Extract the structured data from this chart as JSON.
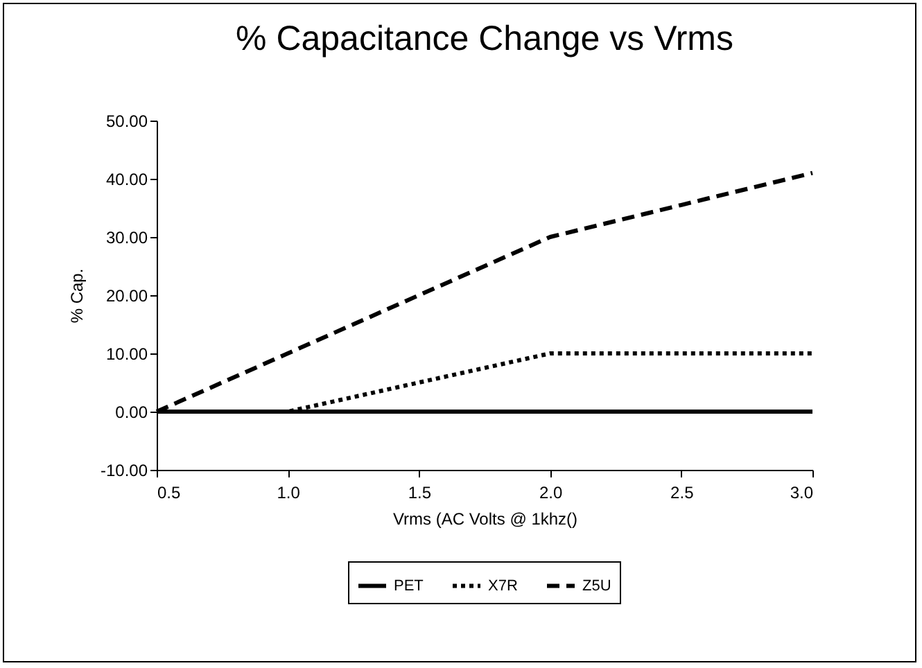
{
  "chart_data": {
    "type": "line",
    "title": "% Capacitance Change vs Vrms",
    "xlabel": "Vrms (AC Volts @ 1khz()",
    "ylabel": "% Cap.",
    "x": [
      0.5,
      1.0,
      1.5,
      2.0,
      2.5,
      3.0
    ],
    "series": [
      {
        "name": "PET",
        "color": "#000000",
        "line_style": "solid",
        "values": [
          0,
          0,
          0,
          0,
          0,
          0
        ]
      },
      {
        "name": "X7R",
        "color": "#000000",
        "line_style": "dotted",
        "values": [
          0,
          0,
          5,
          10,
          10,
          10
        ]
      },
      {
        "name": "Z5U",
        "color": "#000000",
        "line_style": "dashed",
        "values": [
          0,
          10,
          20,
          30,
          35.5,
          41
        ]
      }
    ],
    "xlim": [
      0.5,
      3.0
    ],
    "xticks": [
      0.5,
      {
        "value": 1,
        "label": "1.0"
      },
      1.5,
      {
        "value": 2,
        "label": "2.0"
      },
      2.5,
      {
        "value": 3,
        "label": "3.0"
      }
    ],
    "ylim": [
      -10,
      50
    ],
    "yticks": [
      {
        "value": -10,
        "label": "-10.00"
      },
      {
        "value": 0,
        "label": "0.00"
      },
      {
        "value": 10,
        "label": "10.00"
      },
      {
        "value": 20,
        "label": "20.00"
      },
      {
        "value": 30,
        "label": "30.00"
      },
      {
        "value": 40,
        "label": "40.00"
      },
      {
        "value": 50,
        "label": "50.00"
      }
    ],
    "grid": false,
    "legend": "bottom",
    "marker": "none"
  }
}
